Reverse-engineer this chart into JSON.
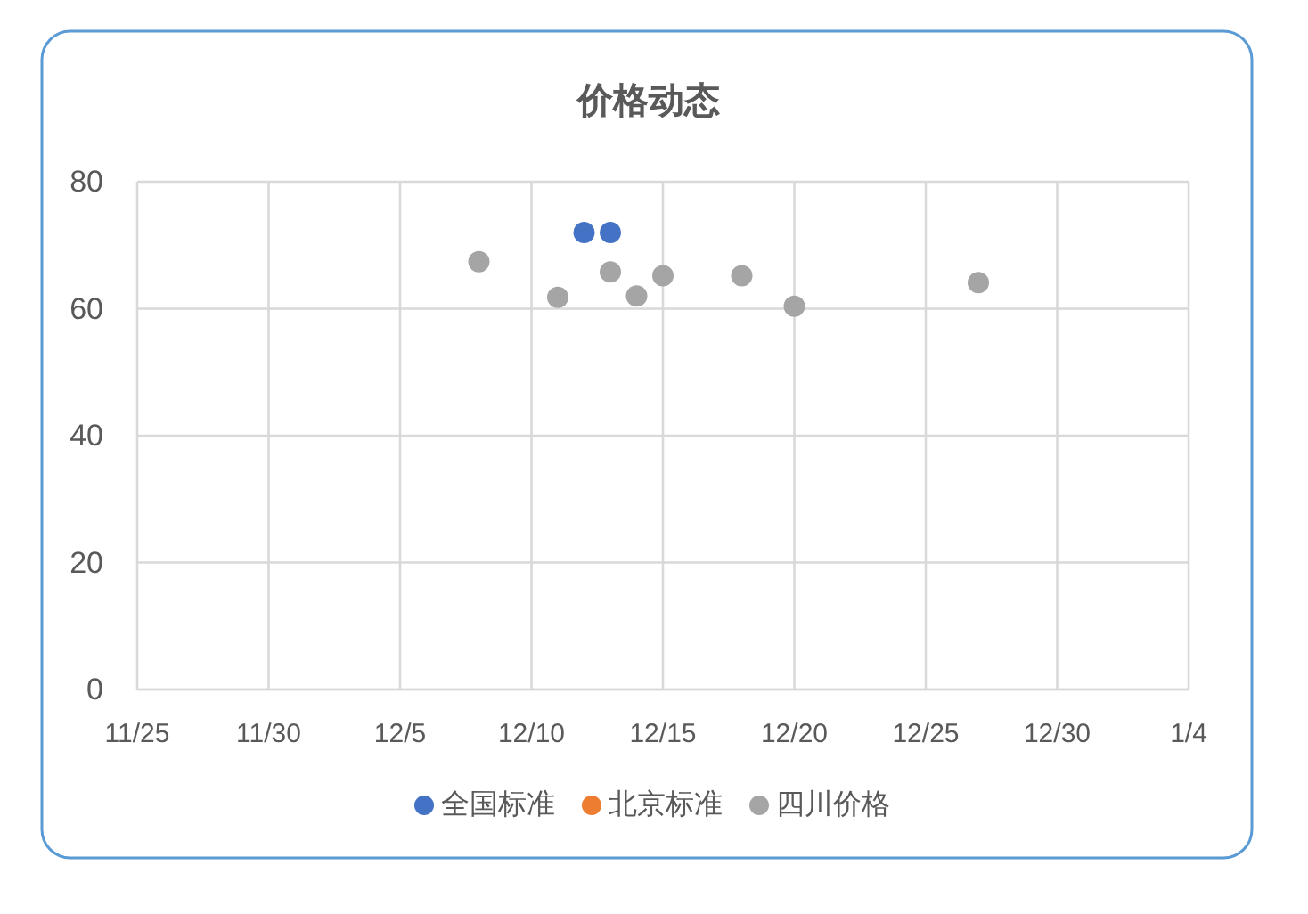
{
  "chart_data": {
    "type": "scatter",
    "title": "价格动态",
    "categories": [
      "11/25",
      null,
      null,
      null,
      null,
      "11/30",
      null,
      null,
      null,
      null,
      "12/5",
      null,
      null,
      null,
      null,
      "12/10",
      null,
      null,
      null,
      null,
      "12/15",
      null,
      null,
      null,
      null,
      "12/20",
      null,
      null,
      null,
      null,
      "12/25",
      null,
      null,
      null,
      null,
      "12/30",
      null,
      null,
      null,
      null,
      "1/4"
    ],
    "ylim": [
      0,
      80
    ],
    "yticks": [
      0,
      20,
      40,
      60,
      80
    ],
    "grid": true,
    "legend": "bottom",
    "marker": "circle",
    "series": [
      {
        "name": "全国标准",
        "color": "#4472c4",
        "values": [
          null,
          null,
          null,
          null,
          null,
          null,
          null,
          null,
          null,
          null,
          null,
          null,
          null,
          null,
          null,
          null,
          null,
          72,
          72,
          null,
          null,
          null,
          null,
          null,
          null,
          null,
          null,
          null,
          null,
          null,
          null,
          null,
          null,
          null,
          null,
          null,
          null,
          null,
          null,
          null,
          null
        ]
      },
      {
        "name": "北京标准",
        "color": "#ed7d31",
        "values": [
          null,
          null,
          null,
          null,
          null,
          null,
          null,
          null,
          null,
          null,
          null,
          null,
          null,
          null,
          null,
          null,
          null,
          null,
          null,
          null,
          null,
          null,
          null,
          null,
          null,
          null,
          null,
          null,
          null,
          null,
          null,
          null,
          null,
          null,
          null,
          null,
          null,
          null,
          null,
          null,
          null
        ]
      },
      {
        "name": "四川价格",
        "color": "#a5a5a5",
        "values": [
          null,
          null,
          null,
          null,
          null,
          null,
          null,
          null,
          null,
          null,
          null,
          null,
          null,
          67.4,
          null,
          null,
          61.8,
          null,
          65.8,
          62.0,
          65.2,
          null,
          null,
          65.2,
          null,
          60.4,
          null,
          null,
          null,
          null,
          null,
          null,
          64.1,
          null,
          null,
          null,
          null,
          null,
          null,
          null,
          null
        ]
      }
    ]
  }
}
